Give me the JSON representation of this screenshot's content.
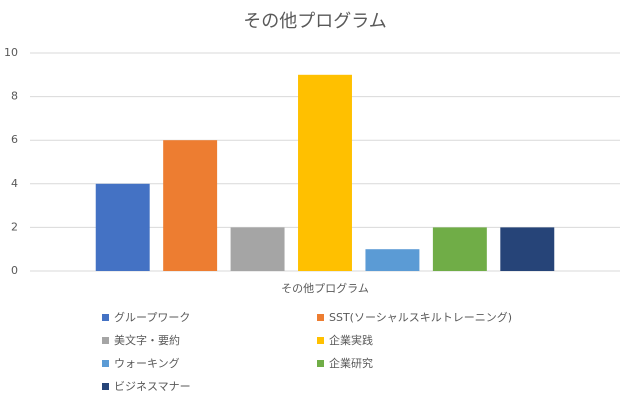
{
  "chart_data": {
    "type": "bar",
    "title": "その他プログラム",
    "categories": [
      "その他プログラム"
    ],
    "series": [
      {
        "name": "グループワーク",
        "color": "#4472c4",
        "values": [
          4
        ]
      },
      {
        "name": "SST(ソーシャルスキルトレーニング)",
        "color": "#ed7d31",
        "values": [
          6
        ]
      },
      {
        "name": "美文字・要約",
        "color": "#a5a5a5",
        "values": [
          2
        ]
      },
      {
        "name": "企業実践",
        "color": "#ffc000",
        "values": [
          9
        ]
      },
      {
        "name": "ウォーキング",
        "color": "#5b9bd5",
        "values": [
          1
        ]
      },
      {
        "name": "企業研究",
        "color": "#70ad47",
        "values": [
          2
        ]
      },
      {
        "name": "ビジネスマナー",
        "color": "#264478",
        "values": [
          2
        ]
      }
    ],
    "ylim": [
      0,
      10
    ],
    "yticks": [
      0,
      2,
      4,
      6,
      8,
      10
    ],
    "grid": true,
    "legend": "bottom"
  }
}
